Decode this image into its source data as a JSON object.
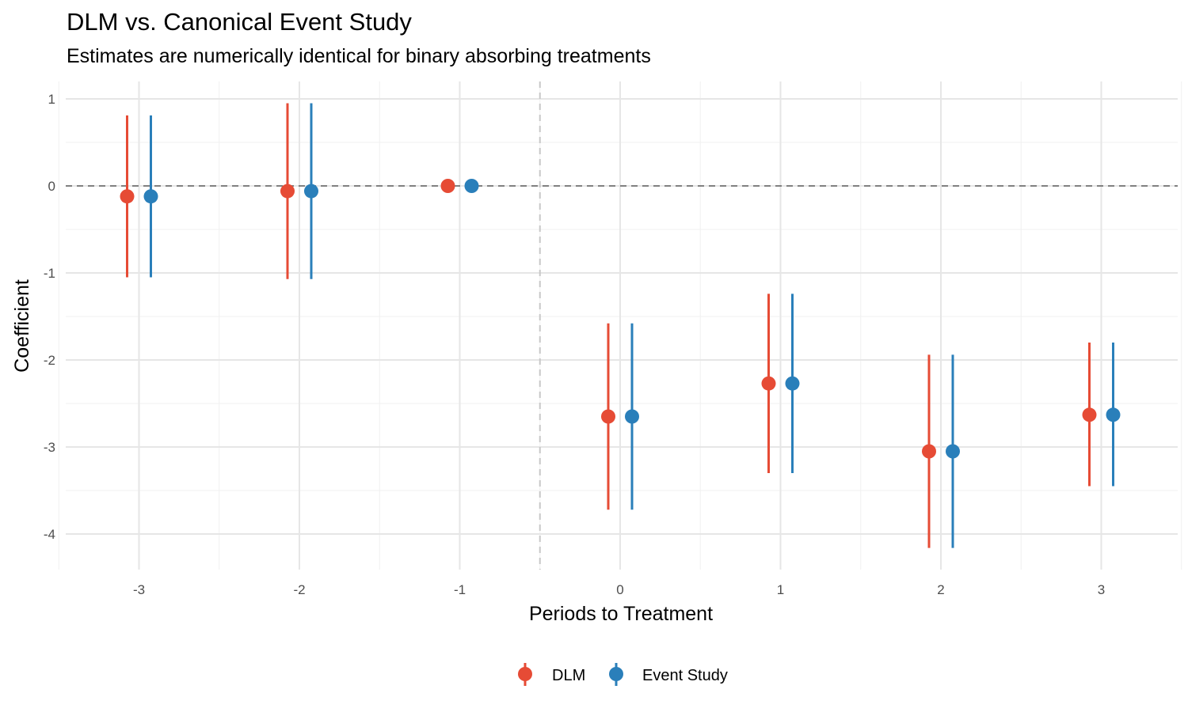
{
  "chart_data": {
    "type": "scatter",
    "title": "DLM vs. Canonical Event Study",
    "subtitle": "Estimates are numerically identical for binary absorbing treatments",
    "xlabel": "Periods to Treatment",
    "ylabel": "Coefficient",
    "xlim": [
      -3.5,
      3.5
    ],
    "ylim": [
      -4.4,
      1.2
    ],
    "x_ticks": [
      "-3",
      "-2",
      "-1",
      "0",
      "1",
      "2",
      "3"
    ],
    "y_ticks": [
      "1",
      "0",
      "-1",
      "-2",
      "-3",
      "-4"
    ],
    "grid": true,
    "legend_position": "bottom",
    "reference_lines": {
      "horizontal_dashed_y": 0,
      "vertical_dashed_x": -0.5
    },
    "x": [
      -3,
      -2,
      -1,
      0,
      1,
      2,
      3
    ],
    "series": [
      {
        "name": "DLM",
        "color": "#E64B35",
        "estimate": [
          -0.12,
          -0.06,
          0,
          -2.65,
          -2.27,
          -3.05,
          -2.63
        ],
        "ci_low": [
          -1.05,
          -1.07,
          null,
          -3.72,
          -3.3,
          -4.16,
          -3.45
        ],
        "ci_high": [
          0.81,
          0.95,
          null,
          -1.58,
          -1.24,
          -1.94,
          -1.8
        ]
      },
      {
        "name": "Event Study",
        "color": "#2A7FBA",
        "estimate": [
          -0.12,
          -0.06,
          0,
          -2.65,
          -2.27,
          -3.05,
          -2.63
        ],
        "ci_low": [
          -1.05,
          -1.07,
          null,
          -3.72,
          -3.3,
          -4.16,
          -3.45
        ],
        "ci_high": [
          0.81,
          0.95,
          null,
          -1.58,
          -1.24,
          -1.94,
          -1.8
        ]
      }
    ]
  }
}
